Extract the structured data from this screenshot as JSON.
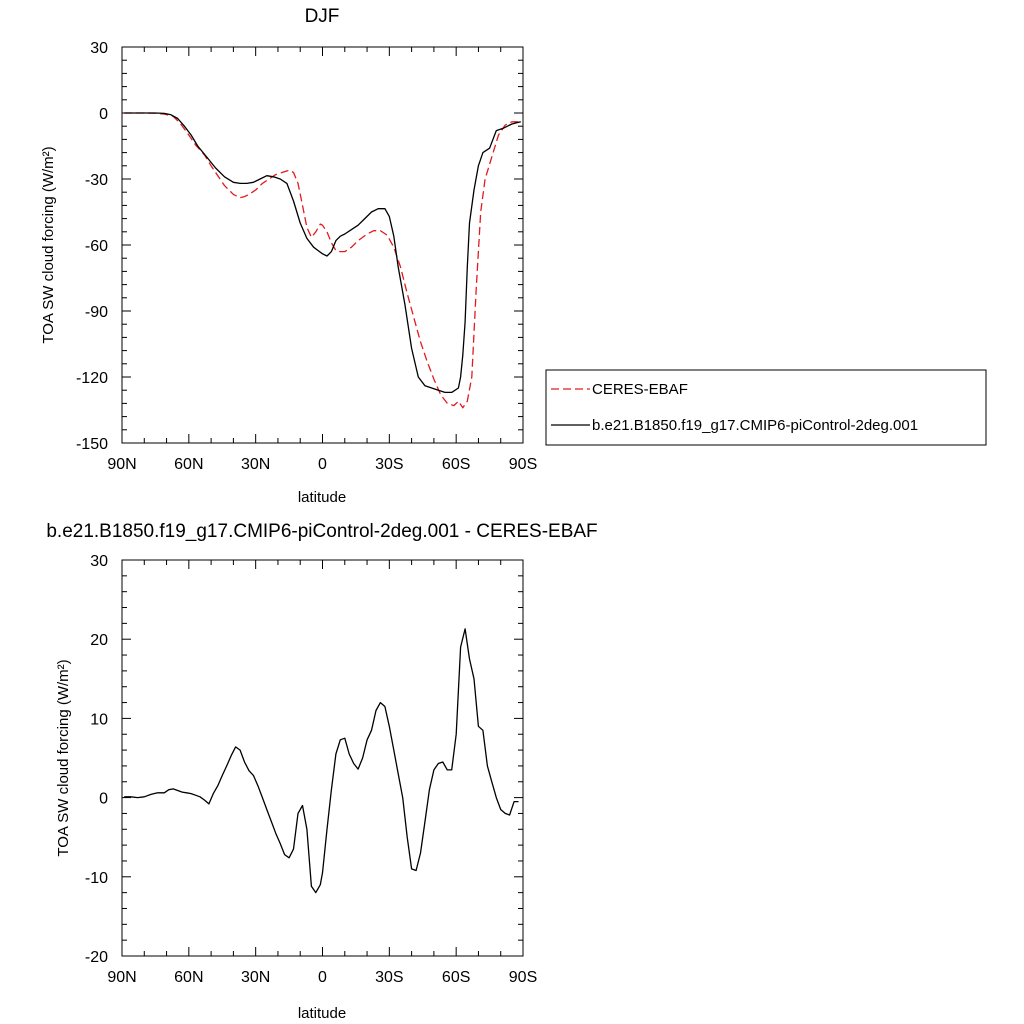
{
  "chart_data": [
    {
      "type": "line",
      "title": "DJF",
      "xlabel": "latitude",
      "ylabel": "TOA SW cloud forcing (W/m²)",
      "xlim": [
        90,
        -90
      ],
      "ylim": [
        -150,
        30
      ],
      "x_ticks": [
        90,
        60,
        30,
        0,
        -30,
        -60,
        -90
      ],
      "x_tick_labels": [
        "90N",
        "60N",
        "30N",
        "0",
        "30S",
        "60S",
        "90S"
      ],
      "y_ticks": [
        30,
        0,
        -30,
        -60,
        -90,
        -120,
        -150
      ],
      "y_tick_labels": [
        "30",
        "0",
        "-30",
        "-60",
        "-90",
        "-120",
        "-150"
      ],
      "legend_position": "right",
      "series": [
        {
          "name": "CERES-EBAF",
          "color": "#e31a1c",
          "dash": "dashed",
          "x": [
            89,
            85,
            80,
            75,
            71,
            67,
            64,
            60,
            57,
            53,
            50,
            47,
            44,
            40,
            37,
            35,
            33,
            30,
            27,
            24,
            21,
            18,
            15,
            13,
            11,
            9,
            7,
            5,
            3,
            1,
            0,
            -2,
            -4,
            -6,
            -8,
            -10,
            -13,
            -16,
            -20,
            -23,
            -26,
            -29,
            -32,
            -35,
            -38,
            -41,
            -44,
            -47,
            -50,
            -53,
            -56,
            -59,
            -61,
            -63,
            -65,
            -67,
            -69,
            -71,
            -73,
            -76,
            -79,
            -82,
            -85,
            -89
          ],
          "y": [
            0,
            0,
            0,
            -0.1,
            -0.5,
            -1.5,
            -4.5,
            -10,
            -14.5,
            -19,
            -24,
            -28.5,
            -33,
            -37,
            -38.5,
            -38,
            -37,
            -35,
            -32,
            -30,
            -28,
            -27,
            -26,
            -27,
            -32,
            -42,
            -52,
            -56.5,
            -54,
            -50.5,
            -51,
            -54,
            -59,
            -62.5,
            -63,
            -63,
            -61,
            -58,
            -55,
            -53.5,
            -53.5,
            -55.5,
            -61,
            -70,
            -82,
            -93,
            -104,
            -113,
            -121,
            -128,
            -132,
            -133,
            -131,
            -134,
            -131,
            -120,
            -80,
            -45,
            -30,
            -20,
            -10,
            -5.5,
            -4,
            -4
          ]
        },
        {
          "name": "b.e21.B1850.f19_g17.CMIP6-piControl-2deg.001",
          "color": "#000000",
          "dash": "solid",
          "x": [
            89,
            85,
            80,
            75,
            71,
            68,
            65,
            62,
            59,
            56,
            52,
            48,
            44,
            40,
            37,
            34,
            31,
            28,
            25,
            22,
            19,
            16,
            13,
            10,
            7,
            4,
            2,
            0,
            -2,
            -4,
            -6,
            -8,
            -10,
            -13,
            -16,
            -19,
            -22,
            -25,
            -28,
            -30,
            -32,
            -34,
            -37,
            -40,
            -43,
            -46,
            -49,
            -52,
            -55,
            -58,
            -61,
            -62,
            -63,
            -64,
            -65,
            -66,
            -68,
            -70,
            -72,
            -75,
            -78,
            -81,
            -85,
            -89
          ],
          "y": [
            0,
            0,
            0,
            0,
            -0.2,
            -0.8,
            -2.5,
            -6,
            -10,
            -15,
            -20,
            -25,
            -29,
            -31.5,
            -32,
            -32,
            -31.5,
            -30,
            -28.5,
            -29,
            -30,
            -32,
            -40,
            -50,
            -57,
            -61,
            -62.5,
            -64,
            -65,
            -63,
            -58,
            -56,
            -55,
            -53,
            -51,
            -48,
            -45,
            -43.5,
            -43.5,
            -47,
            -56,
            -70,
            -87,
            -107,
            -120,
            -124,
            -125,
            -126,
            -127,
            -127,
            -125,
            -120,
            -110,
            -95,
            -70,
            -50,
            -35,
            -24,
            -18,
            -16,
            -8,
            -7,
            -5,
            -4
          ]
        }
      ]
    },
    {
      "type": "line",
      "title": "b.e21.B1850.f19_g17.CMIP6-piControl-2deg.001 - CERES-EBAF",
      "xlabel": "latitude",
      "ylabel": "TOA SW cloud forcing (W/m²)",
      "xlim": [
        90,
        -90
      ],
      "ylim": [
        -20,
        30
      ],
      "x_ticks": [
        90,
        60,
        30,
        0,
        -30,
        -60,
        -90
      ],
      "x_tick_labels": [
        "90N",
        "60N",
        "30N",
        "0",
        "30S",
        "60S",
        "90S"
      ],
      "y_ticks": [
        30,
        20,
        10,
        0,
        -10,
        -20
      ],
      "y_tick_labels": [
        "30",
        "20",
        "10",
        "0",
        "-10",
        "-20"
      ],
      "series": [
        {
          "color": "#000000",
          "dash": "solid",
          "x": [
            89,
            86,
            83,
            80,
            77,
            74,
            71,
            69,
            67,
            65,
            63,
            61,
            59,
            57,
            55,
            53,
            51,
            49,
            47,
            45,
            43,
            41,
            39,
            37,
            35,
            33,
            31,
            29,
            27,
            25,
            23,
            21,
            19,
            17,
            15,
            13,
            11,
            9,
            7,
            5,
            3,
            1,
            0,
            -2,
            -4,
            -6,
            -8,
            -10,
            -12,
            -14,
            -16,
            -18,
            -20,
            -22,
            -24,
            -26,
            -28,
            -30,
            -32,
            -34,
            -36,
            -38,
            -40,
            -42,
            -44,
            -46,
            -48,
            -50,
            -52,
            -54,
            -56,
            -58,
            -60,
            -62,
            -64,
            -66,
            -68,
            -70,
            -72,
            -74,
            -76,
            -78,
            -80,
            -82,
            -84,
            -86,
            -88
          ],
          "y": [
            0.1,
            0.1,
            0,
            0.1,
            0.4,
            0.6,
            0.6,
            1,
            1.1,
            0.9,
            0.7,
            0.6,
            0.5,
            0.3,
            0.1,
            -0.3,
            -0.8,
            0.5,
            1.5,
            2.8,
            4,
            5.3,
            6.4,
            6,
            4.5,
            3.4,
            2.8,
            1.5,
            0,
            -1.5,
            -3,
            -4.5,
            -5.8,
            -7.2,
            -7.6,
            -6.5,
            -2,
            -1,
            -4,
            -11.2,
            -12,
            -11,
            -9.5,
            -4,
            1,
            5.5,
            7.3,
            7.5,
            5.5,
            4.3,
            3.6,
            5,
            7.3,
            8.5,
            11,
            12,
            11.5,
            9,
            6,
            3,
            0,
            -5,
            -9,
            -9.2,
            -7,
            -3,
            1,
            3.5,
            4.3,
            4.5,
            3.5,
            3.5,
            8,
            19,
            21.3,
            17.5,
            15,
            9,
            8.5,
            4,
            2,
            0,
            -1.5,
            -2,
            -2.2,
            -0.5,
            -0.5
          ]
        }
      ]
    }
  ]
}
